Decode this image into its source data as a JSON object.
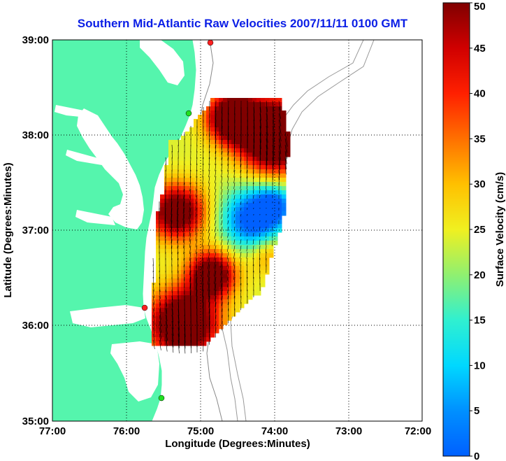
{
  "title": "Southern Mid-Atlantic Raw Velocities 2007/11/11 0100 GMT",
  "map": {
    "xlabel": "Longitude (Degrees:Minutes)",
    "ylabel": "Latitude (Degrees:Minutes)",
    "x_ticks": [
      "77:00",
      "76:00",
      "75:00",
      "74:00",
      "73:00",
      "72:00"
    ],
    "y_ticks": [
      "39:00",
      "38:00",
      "37:00",
      "36:00",
      "35:00"
    ],
    "xlim": [
      -77,
      -72
    ],
    "ylim": [
      35,
      39
    ],
    "grid": "dotted"
  },
  "colorbar": {
    "label": "Surface Velocity (cm/s)",
    "ticks": [
      "0",
      "5",
      "10",
      "15",
      "20",
      "25",
      "30",
      "35",
      "40",
      "45",
      "50"
    ],
    "range": [
      0,
      50
    ]
  },
  "colors": {
    "land": "#55f5ad",
    "title": "#0a1ee6",
    "station_red": "#ff2020",
    "station_green": "#20e020"
  }
}
